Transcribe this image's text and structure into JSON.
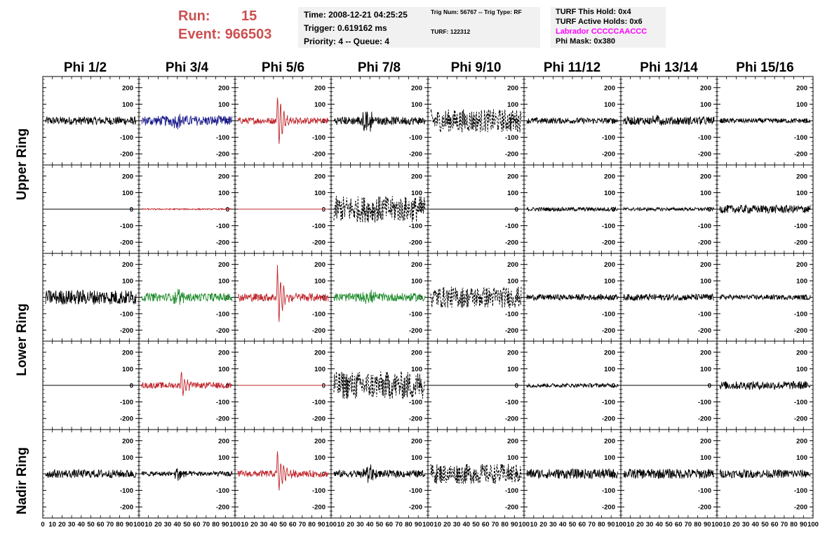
{
  "header": {
    "run_label": "Run:",
    "run_value": "15",
    "event_label": "Event:",
    "event_value": "966503"
  },
  "info_box_1": {
    "time": "Time: 2008-12-21 04:25:25",
    "trigger": "Trigger: 0.619162 ms",
    "priority": "Priority: 4 -- Queue: 4"
  },
  "info_box_2": {
    "trig": "Trig Num: 56767 -- Trig Type: RF",
    "turf": "TURF: 122312"
  },
  "info_box_3": {
    "this_hold": "TURF This Hold: 0x4",
    "active_holds": "TURF Active Holds: 0x6",
    "labrador": "Labrador CCCCCAACCC",
    "phi_mask": "Phi Mask: 0x380"
  },
  "column_headers": [
    "Phi 1/2",
    "Phi 3/4",
    "Phi 5/6",
    "Phi 7/8",
    "Phi 9/10",
    "Phi 11/12",
    "Phi 13/14",
    "Phi 15/16"
  ],
  "ring_labels": [
    "Upper Ring",
    "Lower Ring",
    "Nadir Ring"
  ],
  "chart_data": {
    "type": "line",
    "ylim": [
      -250,
      250
    ],
    "xlim": [
      0,
      100
    ],
    "y_ticks": [
      200,
      100,
      0,
      -100,
      -200
    ],
    "x_ticks": [
      0,
      10,
      20,
      30,
      40,
      50,
      60,
      70,
      80,
      90,
      100
    ],
    "x_tick_labels": [
      "0",
      "10",
      "20",
      "30",
      "40",
      "50",
      "60",
      "70",
      "80",
      "90",
      "100"
    ],
    "colors": {
      "black": "#000000",
      "blue": "#1a1a8c",
      "red": "#c0262c",
      "green": "#1f8c2c"
    },
    "panels": [
      [
        {
          "color": "black",
          "amp": 25,
          "burst": 0,
          "dashed": false,
          "style": "noise"
        },
        {
          "color": "blue",
          "amp": 30,
          "burst": 30,
          "dashed": false,
          "style": "noise"
        },
        {
          "color": "red",
          "amp": 20,
          "burst": 220,
          "dashed": false,
          "style": "pulse"
        },
        {
          "color": "black",
          "amp": 25,
          "burst": 70,
          "dashed": false,
          "style": "noise"
        },
        {
          "color": "black",
          "amp": 70,
          "burst": 0,
          "dashed": true,
          "style": "noise"
        },
        {
          "color": "black",
          "amp": 18,
          "burst": 0,
          "dashed": false,
          "style": "noise"
        },
        {
          "color": "black",
          "amp": 25,
          "burst": 20,
          "dashed": false,
          "style": "noise"
        },
        {
          "color": "black",
          "amp": 15,
          "burst": 0,
          "dashed": false,
          "style": "noise"
        }
      ],
      [
        {
          "color": "black",
          "amp": 0,
          "burst": 0,
          "dashed": false,
          "style": "flat"
        },
        {
          "color": "red",
          "amp": 4,
          "burst": 0,
          "dashed": false,
          "style": "noise"
        },
        {
          "color": "red",
          "amp": 0,
          "burst": 0,
          "dashed": false,
          "style": "flat"
        },
        {
          "color": "black",
          "amp": 80,
          "burst": 0,
          "dashed": true,
          "style": "noise"
        },
        {
          "color": "black",
          "amp": 0,
          "burst": 0,
          "dashed": false,
          "style": "flat"
        },
        {
          "color": "black",
          "amp": 12,
          "burst": 0,
          "dashed": false,
          "style": "noise"
        },
        {
          "color": "black",
          "amp": 10,
          "burst": 0,
          "dashed": false,
          "style": "noise"
        },
        {
          "color": "black",
          "amp": 25,
          "burst": 0,
          "dashed": false,
          "style": "noise"
        }
      ],
      [
        {
          "color": "black",
          "amp": 45,
          "burst": 0,
          "dashed": false,
          "style": "noise"
        },
        {
          "color": "green",
          "amp": 25,
          "burst": 40,
          "dashed": false,
          "style": "noise"
        },
        {
          "color": "red",
          "amp": 25,
          "burst": 240,
          "dashed": false,
          "style": "pulse"
        },
        {
          "color": "green",
          "amp": 25,
          "burst": 40,
          "dashed": false,
          "style": "noise"
        },
        {
          "color": "black",
          "amp": 65,
          "burst": 0,
          "dashed": true,
          "style": "noise"
        },
        {
          "color": "black",
          "amp": 18,
          "burst": 0,
          "dashed": false,
          "style": "noise"
        },
        {
          "color": "black",
          "amp": 20,
          "burst": 0,
          "dashed": false,
          "style": "noise"
        },
        {
          "color": "black",
          "amp": 15,
          "burst": 0,
          "dashed": false,
          "style": "noise"
        }
      ],
      [
        {
          "color": "black",
          "amp": 0,
          "burst": 0,
          "dashed": false,
          "style": "flat"
        },
        {
          "color": "red",
          "amp": 18,
          "burst": 120,
          "dashed": false,
          "style": "pulse"
        },
        {
          "color": "red",
          "amp": 0,
          "burst": 0,
          "dashed": false,
          "style": "flat"
        },
        {
          "color": "black",
          "amp": 85,
          "burst": 0,
          "dashed": true,
          "style": "noise"
        },
        {
          "color": "black",
          "amp": 0,
          "burst": 0,
          "dashed": false,
          "style": "flat"
        },
        {
          "color": "black",
          "amp": 12,
          "burst": 0,
          "dashed": false,
          "style": "noise"
        },
        {
          "color": "black",
          "amp": 0,
          "burst": 0,
          "dashed": false,
          "style": "flat"
        },
        {
          "color": "black",
          "amp": 25,
          "burst": 0,
          "dashed": false,
          "style": "noise"
        }
      ],
      [
        {
          "color": "black",
          "amp": 25,
          "burst": 0,
          "dashed": false,
          "style": "noise"
        },
        {
          "color": "black",
          "amp": 15,
          "burst": 40,
          "dashed": false,
          "style": "noise"
        },
        {
          "color": "red",
          "amp": 20,
          "burst": 180,
          "dashed": false,
          "style": "pulse"
        },
        {
          "color": "black",
          "amp": 22,
          "burst": 50,
          "dashed": false,
          "style": "noise"
        },
        {
          "color": "black",
          "amp": 60,
          "burst": 0,
          "dashed": true,
          "style": "noise"
        },
        {
          "color": "black",
          "amp": 30,
          "burst": 0,
          "dashed": false,
          "style": "noise"
        },
        {
          "color": "black",
          "amp": 30,
          "burst": 0,
          "dashed": false,
          "style": "noise"
        },
        {
          "color": "black",
          "amp": 25,
          "burst": 0,
          "dashed": false,
          "style": "noise"
        }
      ]
    ]
  }
}
